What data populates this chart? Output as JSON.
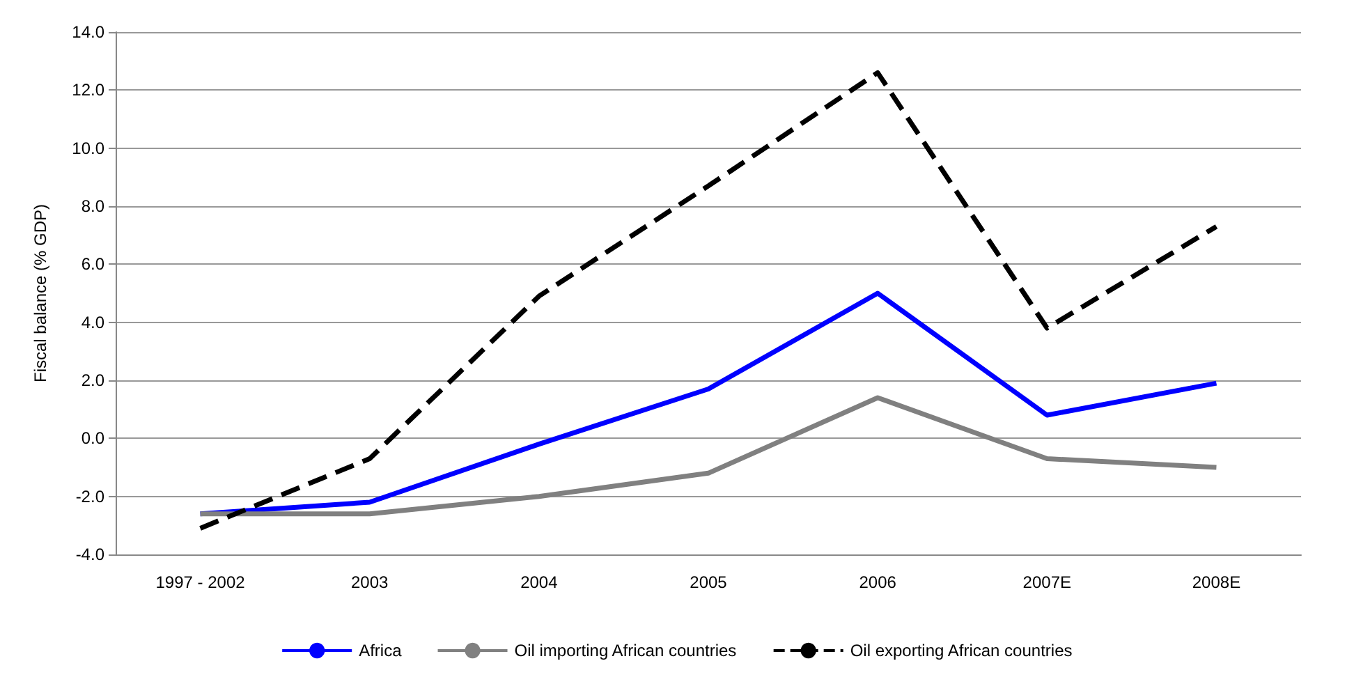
{
  "chart_data": {
    "type": "line",
    "ylabel": "Fiscal balance (% GDP)",
    "categories": [
      "1997 - 2002",
      "2003",
      "2004",
      "2005",
      "2006",
      "2007E",
      "2008E"
    ],
    "series": [
      {
        "name": "Africa",
        "color": "#0000ff",
        "line_style": "solid",
        "values": [
          -2.6,
          -2.2,
          -0.2,
          1.7,
          5.0,
          0.8,
          1.9
        ]
      },
      {
        "name": "Oil importing African countries",
        "color": "#808080",
        "line_style": "solid",
        "values": [
          -2.6,
          -2.6,
          -2.0,
          -1.2,
          1.4,
          -0.7,
          -1.0
        ]
      },
      {
        "name": "Oil exporting African countries",
        "color": "#000000",
        "line_style": "dashed",
        "values": [
          -3.1,
          -0.7,
          4.9,
          8.7,
          12.6,
          3.8,
          7.3
        ]
      }
    ],
    "ylim": [
      -4,
      14
    ],
    "yticks": [
      {
        "value": -4,
        "label": "-4.0"
      },
      {
        "value": -2,
        "label": "-2.0"
      },
      {
        "value": 0,
        "label": "0.0"
      },
      {
        "value": 2,
        "label": "2.0"
      },
      {
        "value": 4,
        "label": "4.0"
      },
      {
        "value": 6,
        "label": "6.0"
      },
      {
        "value": 8,
        "label": "8.0"
      },
      {
        "value": 10,
        "label": "10.0"
      },
      {
        "value": 12,
        "label": "12.0"
      },
      {
        "value": 14,
        "label": "14.0"
      }
    ],
    "grid": "y",
    "legend": "bottom",
    "marker": "none"
  }
}
